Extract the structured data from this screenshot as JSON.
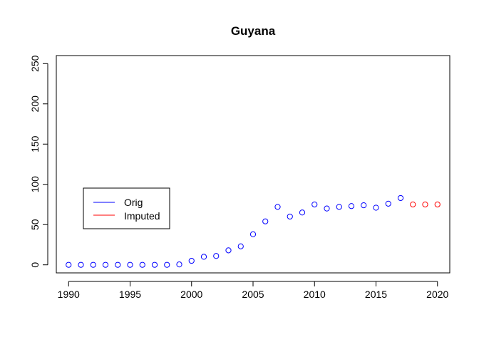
{
  "chart_data": {
    "type": "scatter",
    "title": "Guyana",
    "xlabel": "",
    "ylabel": "",
    "xlim": [
      1989,
      2021
    ],
    "ylim": [
      -10,
      260
    ],
    "x_ticks": [
      "1990",
      "1995",
      "2000",
      "2005",
      "2010",
      "2015",
      "2020"
    ],
    "y_ticks": [
      "0",
      "50",
      "100",
      "150",
      "200",
      "250"
    ],
    "grid": false,
    "legend_position": "left-middle",
    "series": [
      {
        "name": "Orig",
        "color": "#0000ff",
        "marker": "open-circle",
        "points": [
          {
            "x": 1990,
            "y": 0
          },
          {
            "x": 1991,
            "y": 0
          },
          {
            "x": 1992,
            "y": 0
          },
          {
            "x": 1993,
            "y": 0
          },
          {
            "x": 1994,
            "y": 0
          },
          {
            "x": 1995,
            "y": 0
          },
          {
            "x": 1996,
            "y": 0
          },
          {
            "x": 1997,
            "y": 0
          },
          {
            "x": 1998,
            "y": 0
          },
          {
            "x": 1999,
            "y": 0.5
          },
          {
            "x": 2000,
            "y": 5
          },
          {
            "x": 2001,
            "y": 10
          },
          {
            "x": 2002,
            "y": 11
          },
          {
            "x": 2003,
            "y": 18
          },
          {
            "x": 2004,
            "y": 23
          },
          {
            "x": 2005,
            "y": 38
          },
          {
            "x": 2006,
            "y": 54
          },
          {
            "x": 2007,
            "y": 72
          },
          {
            "x": 2008,
            "y": 60
          },
          {
            "x": 2009,
            "y": 65
          },
          {
            "x": 2010,
            "y": 75
          },
          {
            "x": 2011,
            "y": 70
          },
          {
            "x": 2012,
            "y": 72
          },
          {
            "x": 2013,
            "y": 73
          },
          {
            "x": 2014,
            "y": 74
          },
          {
            "x": 2015,
            "y": 71
          },
          {
            "x": 2016,
            "y": 76
          },
          {
            "x": 2017,
            "y": 83
          }
        ]
      },
      {
        "name": "Imputed",
        "color": "#ff0000",
        "marker": "open-circle",
        "points": [
          {
            "x": 2018,
            "y": 75
          },
          {
            "x": 2019,
            "y": 75
          },
          {
            "x": 2020,
            "y": 75
          }
        ]
      }
    ]
  }
}
